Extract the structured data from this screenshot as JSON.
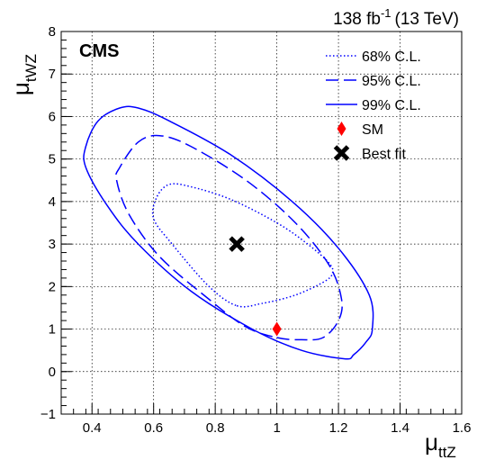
{
  "chart_data": {
    "type": "scatter",
    "experiment": "CMS",
    "lumi_label": "138 fb",
    "lumi_exponent": "-1",
    "energy_label": "(13 TeV)",
    "xlabel": {
      "symbol": "μ",
      "subscript": "ttZ"
    },
    "ylabel": {
      "symbol": "μ",
      "subscript": "tWZ"
    },
    "xlim": [
      0.3,
      1.6
    ],
    "ylim": [
      -1,
      8
    ],
    "x_ticks": [
      {
        "value": 0.4,
        "label": "0.4"
      },
      {
        "value": 0.6,
        "label": "0.6"
      },
      {
        "value": 0.8,
        "label": "0.8"
      },
      {
        "value": 1.0,
        "label": "1"
      },
      {
        "value": 1.2,
        "label": "1.2"
      },
      {
        "value": 1.4,
        "label": "1.4"
      },
      {
        "value": 1.6,
        "label": "1.6"
      }
    ],
    "y_ticks": [
      {
        "value": -1,
        "label": "−1"
      },
      {
        "value": 0,
        "label": "0"
      },
      {
        "value": 1,
        "label": "1"
      },
      {
        "value": 2,
        "label": "2"
      },
      {
        "value": 3,
        "label": "3"
      },
      {
        "value": 4,
        "label": "4"
      },
      {
        "value": 5,
        "label": "5"
      },
      {
        "value": 6,
        "label": "6"
      },
      {
        "value": 7,
        "label": "7"
      },
      {
        "value": 8,
        "label": "8"
      }
    ],
    "grid": true,
    "legend_position": "top-right",
    "contours": [
      {
        "name": "68% C.L.",
        "style": "dotted",
        "points": [
          [
            0.87,
            1.55
          ],
          [
            0.95,
            1.6
          ],
          [
            1.06,
            1.8
          ],
          [
            1.15,
            2.1
          ],
          [
            1.18,
            2.3
          ],
          [
            1.17,
            2.55
          ],
          [
            1.1,
            3.0
          ],
          [
            1.0,
            3.5
          ],
          [
            0.85,
            4.05
          ],
          [
            0.72,
            4.35
          ],
          [
            0.65,
            4.4
          ],
          [
            0.61,
            4.1
          ],
          [
            0.6,
            3.6
          ],
          [
            0.66,
            3.0
          ],
          [
            0.78,
            2.0
          ]
        ]
      },
      {
        "name": "95% C.L.",
        "style": "dashed",
        "points": [
          [
            1.0,
            0.8
          ],
          [
            1.08,
            0.75
          ],
          [
            1.15,
            0.8
          ],
          [
            1.2,
            1.2
          ],
          [
            1.21,
            1.7
          ],
          [
            1.17,
            2.5
          ],
          [
            1.06,
            3.5
          ],
          [
            0.9,
            4.5
          ],
          [
            0.72,
            5.3
          ],
          [
            0.62,
            5.55
          ],
          [
            0.55,
            5.4
          ],
          [
            0.49,
            4.8
          ],
          [
            0.48,
            4.5
          ],
          [
            0.52,
            3.7
          ],
          [
            0.62,
            2.7
          ],
          [
            0.78,
            1.7
          ],
          [
            0.9,
            1.05
          ]
        ]
      },
      {
        "name": "99% C.L.",
        "style": "solid",
        "points": [
          [
            1.22,
            0.3
          ],
          [
            1.25,
            0.4
          ],
          [
            1.29,
            0.7
          ],
          [
            1.31,
            1.0
          ],
          [
            1.3,
            1.8
          ],
          [
            1.2,
            2.9
          ],
          [
            1.05,
            4.0
          ],
          [
            0.85,
            5.1
          ],
          [
            0.65,
            5.9
          ],
          [
            0.55,
            6.2
          ],
          [
            0.49,
            6.2
          ],
          [
            0.42,
            5.9
          ],
          [
            0.38,
            5.3
          ],
          [
            0.38,
            4.8
          ],
          [
            0.45,
            3.9
          ],
          [
            0.55,
            3.0
          ],
          [
            0.72,
            1.9
          ],
          [
            0.92,
            1.0
          ],
          [
            1.08,
            0.5
          ]
        ]
      }
    ],
    "markers": [
      {
        "name": "SM",
        "x": 1.0,
        "y": 1.0,
        "shape": "diamond",
        "color": "#ff0000"
      },
      {
        "name": "Best fit",
        "x": 0.87,
        "y": 3.0,
        "shape": "cross",
        "color": "#000000"
      }
    ],
    "contour_color": "#0000ff"
  }
}
